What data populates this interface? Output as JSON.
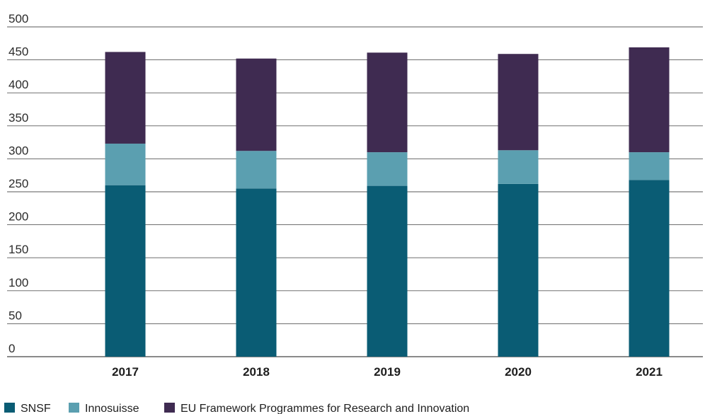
{
  "chart_data": {
    "type": "bar",
    "stacked": true,
    "categories": [
      "2017",
      "2018",
      "2019",
      "2020",
      "2021"
    ],
    "series": [
      {
        "name": "SNSF",
        "color": "#0a5c74",
        "values": [
          260,
          255,
          259,
          262,
          268
        ]
      },
      {
        "name": "Innosuisse",
        "color": "#5b9fb0",
        "values": [
          63,
          57,
          51,
          51,
          42
        ]
      },
      {
        "name": "EU Framework Programmes for Research and Innovation",
        "color": "#3f2b51",
        "values": [
          139,
          140,
          151,
          146,
          159
        ]
      }
    ],
    "ylim": [
      0,
      500
    ],
    "yticks": [
      0,
      50,
      100,
      150,
      200,
      250,
      300,
      350,
      400,
      450,
      500
    ],
    "grid": true,
    "legend_position": "bottom-left",
    "title": "",
    "xlabel": "",
    "ylabel": ""
  }
}
